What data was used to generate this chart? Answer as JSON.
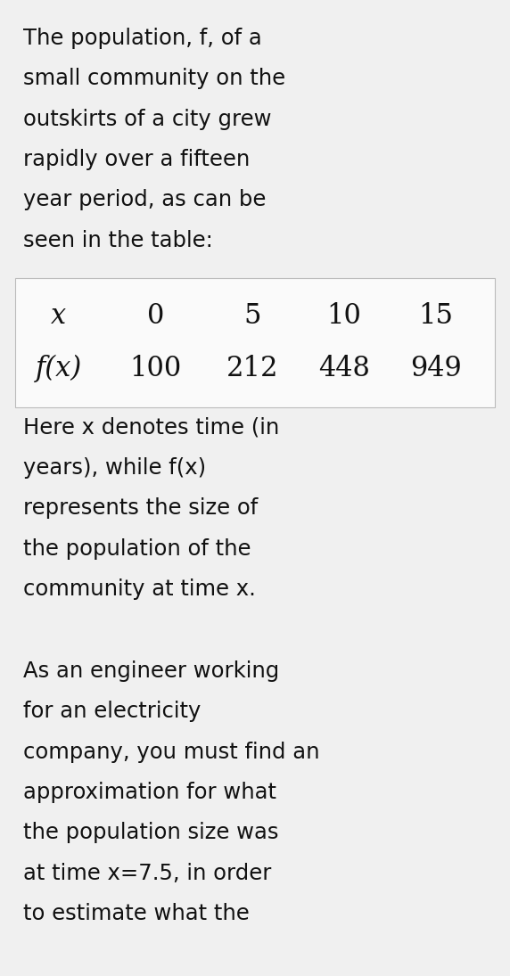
{
  "background_color": "#f0f0f0",
  "table_bg_color": "#fafafa",
  "table_border_color": "#bbbbbb",
  "text_color": "#111111",
  "body_font": "Courier New",
  "math_font": "DejaVu Serif",
  "body_fontsize": 17.5,
  "table_fontsize": 22,
  "paragraph1": [
    "The population, f, of a",
    "small community on the",
    "outskirts of a city grew",
    "rapidly over a fifteen",
    "year period, as can be",
    "seen in the table:"
  ],
  "table_x_label": "x",
  "table_x_values": [
    "0",
    "5",
    "10",
    "15"
  ],
  "table_fx_label": "f(x)",
  "table_fx_values": [
    "100",
    "212",
    "448",
    "949"
  ],
  "paragraph2": [
    "Here x denotes time (in",
    "years), while f(x)",
    "represents the size of",
    "the population of the",
    "community at time x."
  ],
  "paragraph3": [
    "As an engineer working",
    "for an electricity",
    "company, you must find an",
    "approximation for what",
    "the population size was",
    "at time x=7.5, in order",
    "to estimate what the"
  ]
}
